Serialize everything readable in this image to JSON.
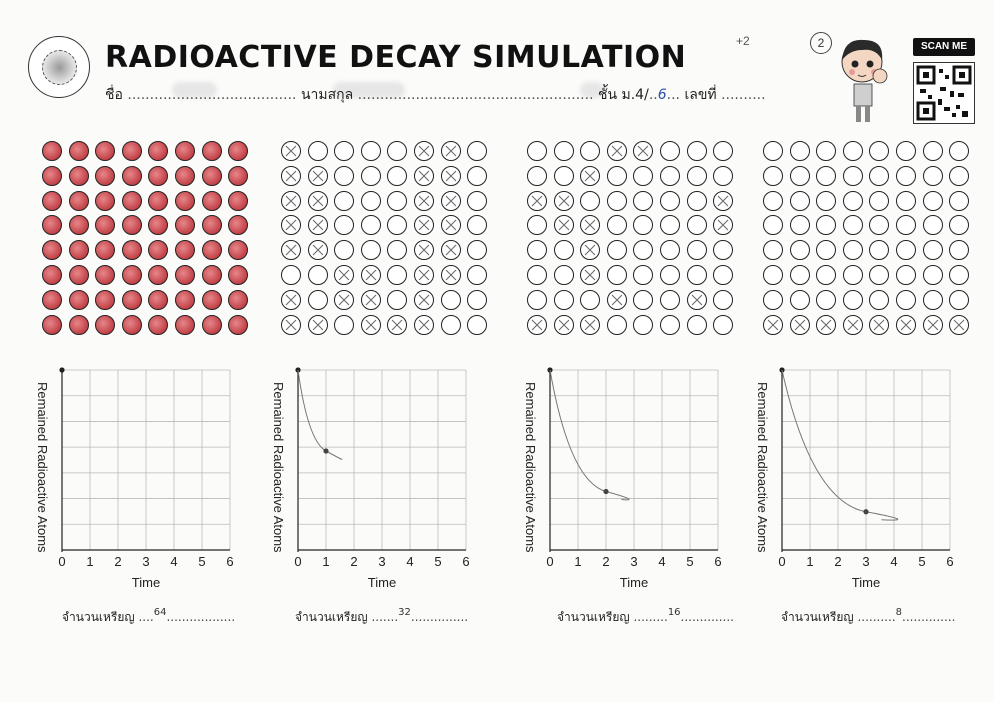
{
  "header": {
    "title": "RADIOACTIVE DECAY SIMULATION",
    "name_label": "ชื่อ",
    "surname_label": "นามสกุล",
    "class_label": "ชั้น ม.4/",
    "class_value": "6",
    "number_label": "เลขที่",
    "score": "+2",
    "page_number": "2",
    "scan_label": "SCAN ME"
  },
  "icons": {
    "school_logo": "seal-logo",
    "character": "boy-mascot",
    "qr": "qr-code"
  },
  "colors": {
    "coin_red": "#c24146",
    "ink": "#222222"
  },
  "panels": [
    {
      "remaining": 64,
      "coin_count_text": "64",
      "marked": "all coins colored red"
    },
    {
      "remaining": 32,
      "coin_count_text": "32",
      "marked": "about half the coins crossed out"
    },
    {
      "remaining": 16,
      "coin_count_text": "16",
      "marked": "some coins crossed out"
    },
    {
      "remaining": 8,
      "coin_count_text": "8",
      "marked": "bottom row crossed out"
    }
  ],
  "graph_labels": {
    "ylabel": "Remained Radioactive Atoms",
    "xlabel": "Time",
    "xticks": [
      "0",
      "1",
      "2",
      "3",
      "4",
      "5",
      "6"
    ],
    "coin_count_label": "จำนวนเหรียญ"
  },
  "chart_data": [
    {
      "type": "line",
      "xlabel": "Time",
      "ylabel": "Remained Radioactive Atoms",
      "xlim": [
        0,
        6
      ],
      "points": [
        {
          "x": 0,
          "y": 64
        }
      ]
    },
    {
      "type": "line",
      "xlabel": "Time",
      "ylabel": "Remained Radioactive Atoms",
      "xlim": [
        0,
        6
      ],
      "points": [
        {
          "x": 0,
          "y": 64
        },
        {
          "x": 1,
          "y": 32
        }
      ]
    },
    {
      "type": "line",
      "xlabel": "Time",
      "ylabel": "Remained Radioactive Atoms",
      "xlim": [
        0,
        6
      ],
      "points": [
        {
          "x": 0,
          "y": 64
        },
        {
          "x": 2,
          "y": 16
        }
      ]
    },
    {
      "type": "line",
      "xlabel": "Time",
      "ylabel": "Remained Radioactive Atoms",
      "xlim": [
        0,
        6
      ],
      "points": [
        {
          "x": 0,
          "y": 64
        },
        {
          "x": 3,
          "y": 8
        }
      ]
    }
  ]
}
